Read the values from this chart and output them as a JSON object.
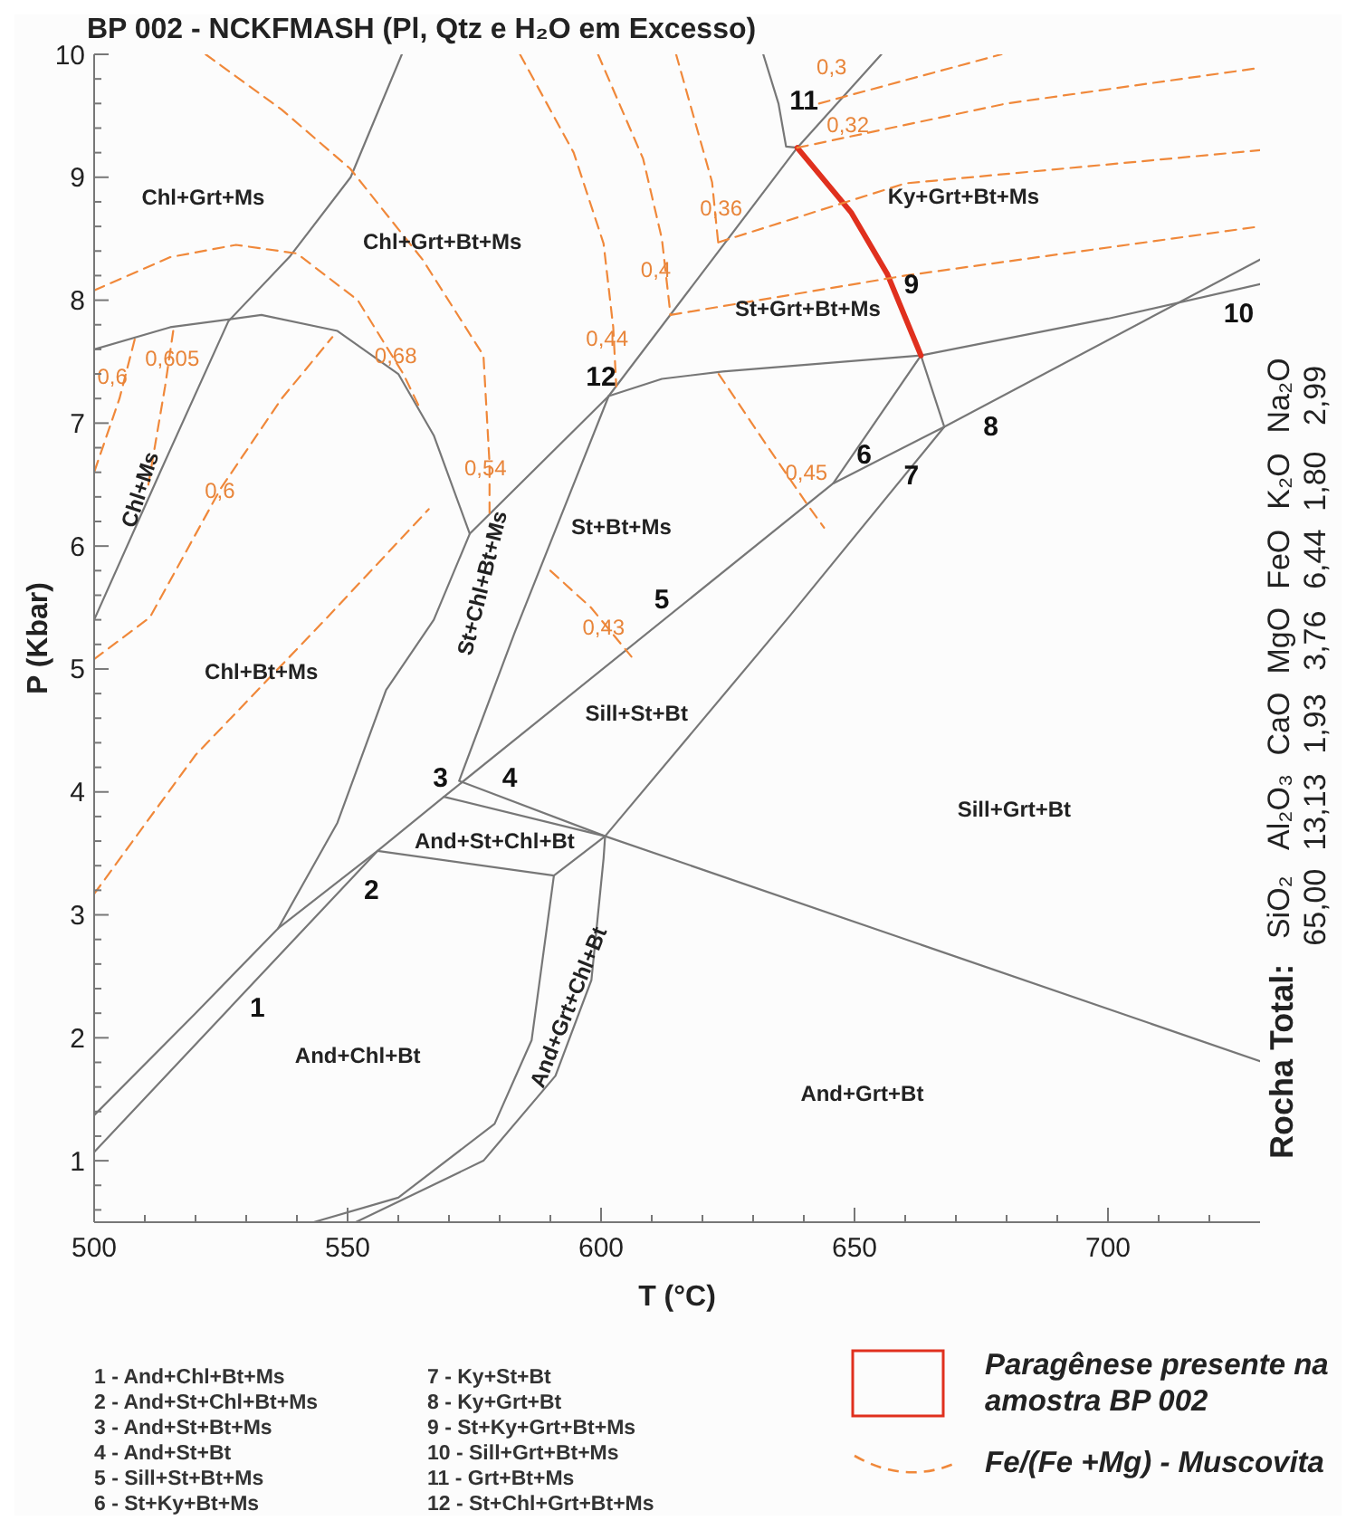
{
  "chart_data": {
    "type": "line",
    "title": "BP 002 - NCKFMASH (Pl, Qtz e H₂O em Excesso)",
    "xlabel": "T (°C)",
    "ylabel": "P (Kbar)",
    "xlim": [
      500,
      730
    ],
    "ylim": [
      0.5,
      10
    ],
    "marker": "none",
    "legend": "bottom",
    "xticks": [
      500,
      {
        "value": 510,
        "label": null
      },
      {
        "value": 520,
        "label": null
      },
      {
        "value": 530,
        "label": null
      },
      {
        "value": 540,
        "label": null
      },
      550,
      {
        "value": 560,
        "label": null
      },
      {
        "value": 570,
        "label": null
      },
      {
        "value": 580,
        "label": null
      },
      {
        "value": 590,
        "label": null
      },
      600,
      {
        "value": 610,
        "label": null
      },
      {
        "value": 620,
        "label": null
      },
      {
        "value": 630,
        "label": null
      },
      {
        "value": 640,
        "label": null
      },
      650,
      {
        "value": 660,
        "label": null
      },
      {
        "value": 670,
        "label": null
      },
      {
        "value": 680,
        "label": null
      },
      {
        "value": 690,
        "label": null
      },
      700,
      {
        "value": 710,
        "label": null
      },
      {
        "value": 720,
        "label": null
      }
    ],
    "yticks": [
      {
        "value": 0.6,
        "label": null
      },
      {
        "value": 0.8,
        "label": null
      },
      1,
      {
        "value": 1.2,
        "label": null
      },
      {
        "value": 1.4,
        "label": null
      },
      {
        "value": 1.6,
        "label": null
      },
      {
        "value": 1.8,
        "label": null
      },
      2,
      {
        "value": 2.2,
        "label": null
      },
      {
        "value": 2.4,
        "label": null
      },
      {
        "value": 2.6,
        "label": null
      },
      {
        "value": 2.8,
        "label": null
      },
      3,
      {
        "value": 3.2,
        "label": null
      },
      {
        "value": 3.4,
        "label": null
      },
      {
        "value": 3.6,
        "label": null
      },
      {
        "value": 3.8,
        "label": null
      },
      4,
      {
        "value": 4.2,
        "label": null
      },
      {
        "value": 4.4,
        "label": null
      },
      {
        "value": 4.6,
        "label": null
      },
      {
        "value": 4.8,
        "label": null
      },
      5,
      {
        "value": 5.2,
        "label": null
      },
      {
        "value": 5.4,
        "label": null
      },
      {
        "value": 5.6,
        "label": null
      },
      {
        "value": 5.8,
        "label": null
      },
      6,
      {
        "value": 6.2,
        "label": null
      },
      {
        "value": 6.4,
        "label": null
      },
      {
        "value": 6.6,
        "label": null
      },
      {
        "value": 6.8,
        "label": null
      },
      7,
      {
        "value": 7.2,
        "label": null
      },
      {
        "value": 7.4,
        "label": null
      },
      {
        "value": 7.6,
        "label": null
      },
      {
        "value": 7.8,
        "label": null
      },
      8,
      {
        "value": 8.2,
        "label": null
      },
      {
        "value": 8.4,
        "label": null
      },
      {
        "value": 8.6,
        "label": null
      },
      {
        "value": 8.8,
        "label": null
      },
      9,
      {
        "value": 9.2,
        "label": null
      },
      {
        "value": 9.4,
        "label": null
      },
      {
        "value": 9.6,
        "label": null
      },
      {
        "value": 9.8,
        "label": null
      },
      10
    ],
    "series": [
      {
        "color": "#777777",
        "x": [
          500,
          555.9,
          569,
          645.8,
          667.7,
          730
        ],
        "values": [
          1.07,
          3.52,
          3.96,
          6.51,
          6.97,
          8.33
        ]
      },
      {
        "color": "#777777",
        "x": [
          500,
          520,
          536.3,
          548,
          557.6,
          567,
          574.1,
          601.5,
          638.7,
          655.3
        ],
        "values": [
          1.37,
          2.2,
          2.89,
          3.75,
          4.83,
          5.4,
          6.1,
          7.22,
          9.24,
          10
        ]
      },
      {
        "color": "#777777",
        "x": [
          536.3,
          555.9
        ],
        "values": [
          2.89,
          3.52
        ]
      },
      {
        "color": "#777777",
        "x": [
          601.5,
          583,
          572,
          600.8,
          730
        ],
        "values": [
          7.22,
          5.3,
          4.09,
          3.64,
          1.81
        ]
      },
      {
        "color": "#777777",
        "x": [
          500,
          515,
          533,
          548,
          560,
          567,
          574.1
        ],
        "values": [
          7.6,
          7.78,
          7.88,
          7.75,
          7.4,
          6.9,
          6.1
        ]
      },
      {
        "color": "#777777",
        "x": [
          500,
          513,
          526.5,
          538.7,
          550.6,
          560.7
        ],
        "values": [
          5.4,
          6.6,
          7.83,
          8.36,
          9.0,
          10
        ]
      },
      {
        "color": "#777777",
        "x": [
          601.5,
          612,
          624,
          663.1,
          700,
          730
        ],
        "values": [
          7.22,
          7.36,
          7.42,
          7.55,
          7.85,
          8.13
        ]
      },
      {
        "color": "#777777",
        "x": [
          645.8,
          663.1,
          667.7
        ],
        "values": [
          6.51,
          7.55,
          6.97
        ]
      },
      {
        "color": "#777777",
        "x": [
          555.9,
          590.7,
          600.8,
          637,
          667.7
        ],
        "values": [
          3.52,
          3.32,
          3.64,
          5.42,
          6.97
        ]
      },
      {
        "color": "#777777",
        "x": [
          590.7,
          586.3,
          579,
          560,
          543.3
        ],
        "values": [
          3.32,
          1.98,
          1.3,
          0.7,
          0.5
        ]
      },
      {
        "color": "#777777",
        "x": [
          569,
          600.8,
          600.5,
          598.1,
          591,
          576.8,
          551.6
        ],
        "values": [
          3.96,
          3.64,
          3.46,
          2.47,
          1.69,
          1.0,
          0.5
        ]
      },
      {
        "color": "#777777",
        "x": [
          632,
          635,
          636.5,
          638.7
        ],
        "values": [
          10,
          9.6,
          9.25,
          9.24
        ]
      },
      {
        "name": "Paragênese presente na amostra BP 002",
        "color": "#e0301e",
        "x": [
          638.7,
          649.4,
          656.5,
          663.1
        ],
        "values": [
          9.24,
          8.71,
          8.21,
          7.55
        ]
      },
      {
        "name": "Fe/(Fe +Mg) - Muscovita",
        "color": "#f0883a",
        "line_style": "dashed",
        "x": [
          500,
          515,
          528,
          540,
          552,
          561,
          564.5
        ],
        "values": [
          8.08,
          8.35,
          8.45,
          8.38,
          8.0,
          7.4,
          7.1
        ]
      },
      {
        "color": "#f0883a",
        "line_style": "dashed",
        "x": [
          522,
          537,
          550.5,
          564.8,
          576.8,
          578,
          578
        ],
        "values": [
          10,
          9.55,
          9.07,
          8.33,
          7.55,
          6.67,
          6.27
        ]
      },
      {
        "color": "#f0883a",
        "line_style": "dashed",
        "x": [
          584,
          594.6,
          600.5,
          602.4,
          603
        ],
        "values": [
          10,
          9.2,
          8.46,
          7.78,
          7.3
        ]
      },
      {
        "color": "#f0883a",
        "line_style": "dashed",
        "x": [
          599.4,
          608.3,
          612,
          613.7
        ],
        "values": [
          10,
          9.15,
          8.5,
          7.88
        ]
      },
      {
        "color": "#f0883a",
        "line_style": "dashed",
        "x": [
          613.7,
          660,
          730
        ],
        "values": [
          7.88,
          8.2,
          8.6
        ]
      },
      {
        "color": "#f0883a",
        "line_style": "dashed",
        "x": [
          614.8,
          621.9,
          623.1
        ],
        "values": [
          10,
          8.96,
          8.47
        ]
      },
      {
        "color": "#f0883a",
        "line_style": "dashed",
        "x": [
          623.1,
          660,
          730
        ],
        "values": [
          8.47,
          8.95,
          9.22
        ]
      },
      {
        "color": "#f0883a",
        "line_style": "dashed",
        "x": [
          638.7,
          680,
          730
        ],
        "values": [
          9.24,
          9.6,
          9.89
        ]
      },
      {
        "color": "#f0883a",
        "line_style": "dashed",
        "x": [
          643,
          679
        ],
        "values": [
          9.6,
          10
        ]
      },
      {
        "color": "#f0883a",
        "line_style": "dashed",
        "x": [
          508,
          505,
          500
        ],
        "values": [
          7.68,
          7.2,
          6.6
        ]
      },
      {
        "color": "#f0883a",
        "line_style": "dashed",
        "x": [
          515.6,
          514,
          510.7
        ],
        "values": [
          7.75,
          7.3,
          6.5
        ]
      },
      {
        "color": "#f0883a",
        "line_style": "dashed",
        "x": [
          500,
          511,
          525,
          537,
          547
        ],
        "values": [
          5.08,
          5.42,
          6.47,
          7.2,
          7.7
        ]
      },
      {
        "color": "#f0883a",
        "line_style": "dashed",
        "x": [
          500,
          520,
          546,
          566
        ],
        "values": [
          3.17,
          4.3,
          5.42,
          6.3
        ]
      },
      {
        "color": "#f0883a",
        "line_style": "dashed",
        "x": [
          590,
          598,
          606
        ],
        "values": [
          5.8,
          5.5,
          5.1
        ]
      },
      {
        "color": "#f0883a",
        "line_style": "dashed",
        "x": [
          623.2,
          633,
          641,
          644
        ],
        "values": [
          7.4,
          6.8,
          6.32,
          6.15
        ]
      }
    ],
    "annotations": [
      "Chl+Grt+Ms",
      "Chl+Grt+Bt+Ms",
      "Ky+Grt+Bt+Ms",
      "St+Grt+Bt+Ms",
      "St+Bt+Ms",
      "Chl+Bt+Ms",
      "Sill+St+Bt",
      "Sill+Grt+Bt",
      "And+St+Chl+Bt",
      "And+Chl+Bt",
      "And+Grt+Bt",
      "Chl+Ms",
      "St+Chl+Bt+Ms",
      "And+Grt+Chl+Bt",
      "1",
      "2",
      "3",
      "4",
      "5",
      "6",
      "7",
      "8",
      "9",
      "10",
      "11",
      "12",
      "0,3",
      "0,32",
      "0,36",
      "0,4",
      "0,44",
      "0,54",
      "0,68",
      "0,6",
      "0,605",
      "0,6",
      "0,43",
      "0,45",
      "1 - And+Chl+Bt+Ms",
      "2 - And+St+Chl+Bt+Ms",
      "3 - And+St+Bt+Ms",
      "4 - And+St+Bt",
      "5 - Sill+St+Bt+Ms",
      "6 - St+Ky+Bt+Ms",
      "7 - Ky+St+Bt",
      "8 - Ky+Grt+Bt",
      "9 - St+Ky+Grt+Bt+Ms",
      "10 - Sill+Grt+Bt+Ms",
      "11 - Grt+Bt+Ms",
      "12 - St+Chl+Grt+Bt+Ms",
      "Rocha Total:",
      "SiO₂ 65,00",
      "Al₂O₃ 13,13",
      "CaO 1,93",
      "MgO 3,76",
      "FeO 6,44",
      "K₂O 1,80",
      "Na₂O 2,99"
    ]
  }
}
